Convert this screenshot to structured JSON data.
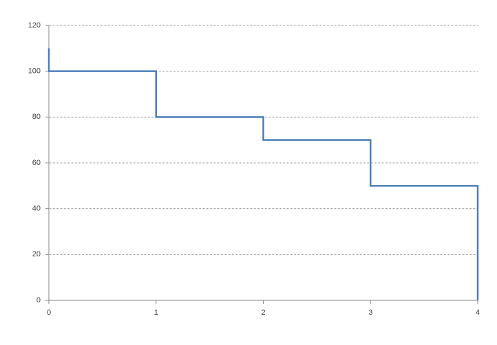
{
  "chart_data": {
    "type": "line",
    "x": [
      0,
      0,
      1,
      1,
      2,
      2,
      3,
      3,
      4,
      4
    ],
    "series": [
      {
        "color": "#4a7ebb",
        "values": [
          110,
          100,
          100,
          80,
          80,
          70,
          70,
          50,
          50,
          0
        ]
      }
    ],
    "xlim": [
      0,
      4
    ],
    "xticks": [
      0,
      1,
      2,
      3,
      4
    ],
    "ylim": [
      0,
      120
    ],
    "yticks": [
      0,
      20,
      40,
      60,
      80,
      100,
      120
    ],
    "grid": true
  }
}
